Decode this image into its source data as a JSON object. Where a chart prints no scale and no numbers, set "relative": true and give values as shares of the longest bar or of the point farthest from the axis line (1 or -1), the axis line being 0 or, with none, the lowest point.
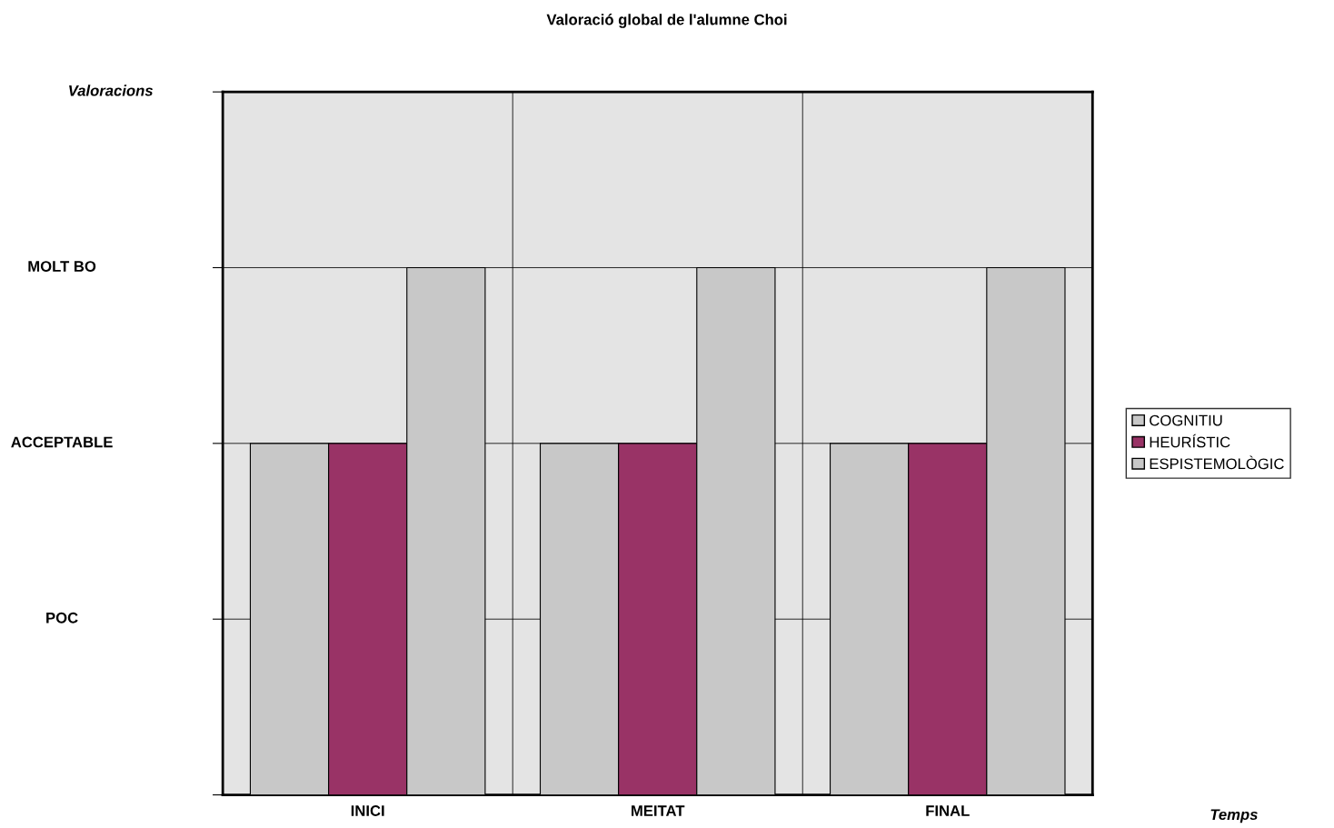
{
  "chart_data": {
    "type": "bar",
    "title": "Valoració global de l'alumne Choi",
    "relative": true,
    "categories": [
      "INICI",
      "MEITAT",
      "FINAL"
    ],
    "series": [
      {
        "name": "COGNITIU",
        "color": "#c8c8c8",
        "values": [
          0.6667,
          0.6667,
          0.6667
        ]
      },
      {
        "name": "HEURÍSTIC",
        "color": "#993366",
        "values": [
          0.6667,
          0.6667,
          0.6667
        ]
      },
      {
        "name": "ESPISTEMOLÒGIC",
        "color": "#c8c8c8",
        "values": [
          1,
          1,
          1
        ]
      }
    ],
    "annotations": [
      "POC",
      "ACCEPTABLE",
      "MOLT BO",
      "Valoracions",
      "Temps"
    ],
    "grid": true,
    "legend": "right"
  }
}
